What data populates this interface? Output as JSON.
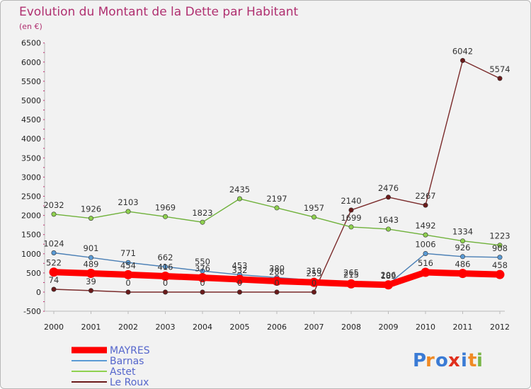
{
  "chart_data": {
    "type": "line",
    "title": "Evolution du Montant de la Dette par Habitant",
    "subtitle": "(en €)",
    "xlabel": "",
    "ylabel": "",
    "categories": [
      "2000",
      "2001",
      "2002",
      "2003",
      "2004",
      "2005",
      "2006",
      "2007",
      "2008",
      "2009",
      "2010",
      "2011",
      "2012"
    ],
    "ylim": [
      -500,
      6500
    ],
    "yticks": [
      -500,
      0,
      500,
      1000,
      1500,
      2000,
      2500,
      3000,
      3500,
      4000,
      4500,
      5000,
      5500,
      6000,
      6500
    ],
    "grid": false,
    "legend_position": "bottom-left",
    "series": [
      {
        "name": "MAYRES",
        "color": "#ff0000",
        "values": [
          522,
          489,
          454,
          416,
          376,
          332,
          286,
          253,
          215,
          189,
          516,
          486,
          458
        ]
      },
      {
        "name": "Barnas",
        "color": "#5b9bd5",
        "values": [
          1024,
          901,
          771,
          662,
          550,
          453,
          380,
          310,
          265,
          206,
          1006,
          926,
          908
        ]
      },
      {
        "name": "Astet",
        "color": "#8fd14f",
        "values": [
          2032,
          1926,
          2103,
          1969,
          1823,
          2435,
          2197,
          1957,
          1699,
          1643,
          1492,
          1334,
          1223
        ]
      },
      {
        "name": "Le Roux",
        "color": "#6b1a1a",
        "values": [
          74,
          39,
          0,
          0,
          0,
          0,
          0,
          0,
          2140,
          2476,
          2267,
          6042,
          5574
        ]
      }
    ]
  },
  "logo": {
    "text": "Proxiti",
    "letters": [
      "P",
      "r",
      "o",
      "x",
      "i",
      "t",
      "i"
    ],
    "colors": [
      "#3a7bd5",
      "#f08a24",
      "#3a7bd5",
      "#e0301e",
      "#3a7bd5",
      "#f08a24",
      "#7ab648"
    ]
  }
}
